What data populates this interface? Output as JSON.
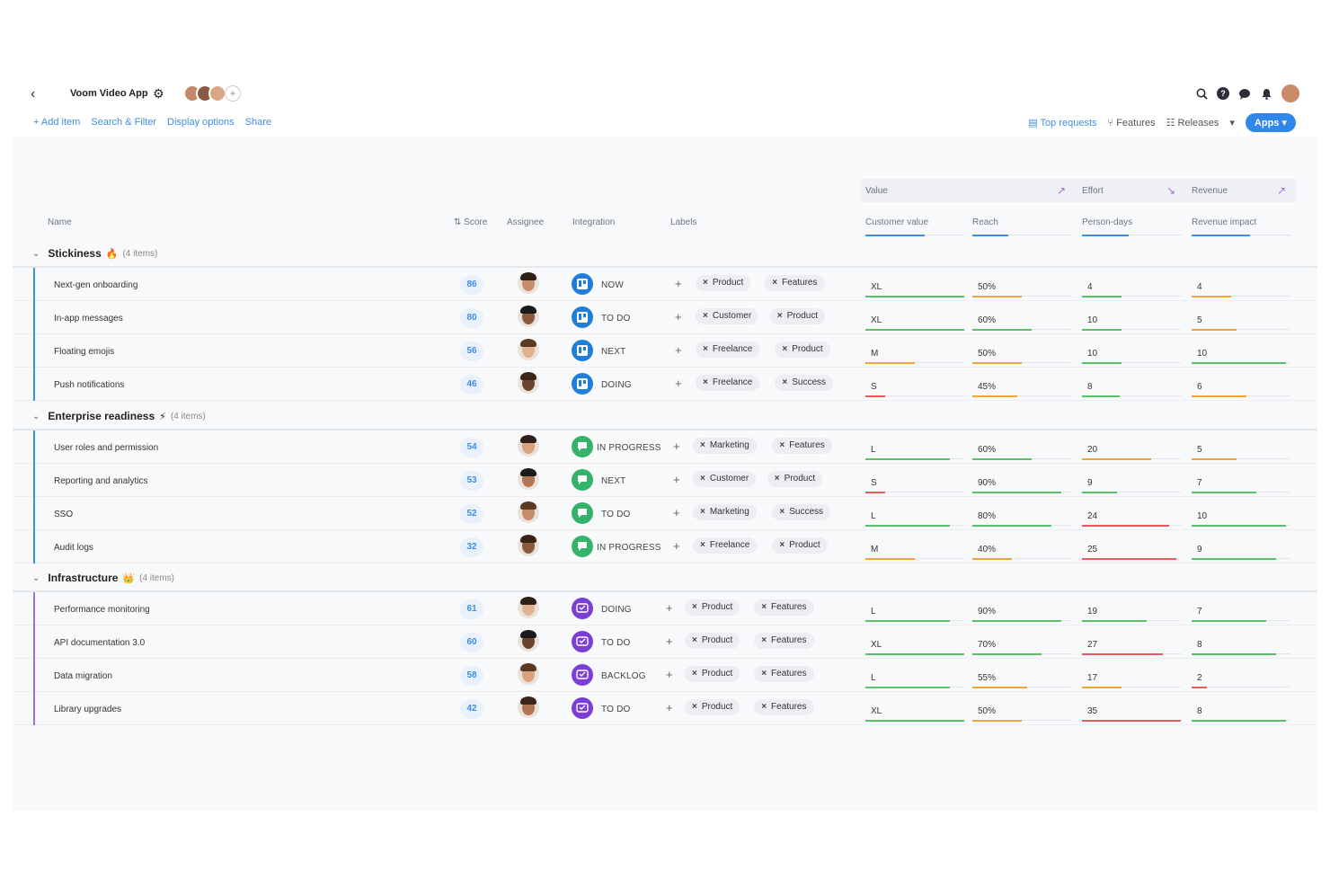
{
  "header": {
    "back_icon": "chevron-left-icon",
    "app_title": "Voom Video App",
    "settings_icon": "gear-icon",
    "avatars": [
      "#c08a6b",
      "#8a5a44",
      "#d9a784"
    ],
    "add_member": "+",
    "right_icons": [
      "search-icon",
      "help-icon",
      "chat-icon",
      "bell-icon"
    ]
  },
  "actions": {
    "add_item": "+ Add item",
    "search_filter": "Search & Filter",
    "display_options": "Display options",
    "share": "Share"
  },
  "views": {
    "top_requests": "Top requests",
    "features": "Features",
    "releases": "Releases",
    "more": "▾",
    "apps": "Apps ▾"
  },
  "columns": {
    "name": "Name",
    "score": "Score",
    "assignee": "Assignee",
    "integration": "Integration",
    "labels": "Labels",
    "value_group": "Value",
    "effort_group": "Effort",
    "revenue_group": "Revenue",
    "customer_value": "Customer value",
    "reach": "Reach",
    "person_days": "Person-days",
    "revenue_impact": "Revenue impact"
  },
  "colors": {
    "green": "#5bbf6a",
    "orange": "#f0a53a",
    "red": "#e75b5b",
    "trello": "#1f7fd6",
    "chat": "#35b36b",
    "purple": "#7b3fd6"
  },
  "groups": [
    {
      "title": "Stickiness",
      "emoji": "🔥",
      "count": "(4 items)",
      "bar_color": "#3d8ee6",
      "integration": "trello",
      "rows": [
        {
          "name": "Next-gen onboarding",
          "score": "86",
          "status": "NOW",
          "labels": [
            "Product",
            "Features"
          ],
          "cv": "XL",
          "cv_level": 1.0,
          "cv_color": "green",
          "reach": "50%",
          "reach_level": 0.5,
          "reach_color": "orange",
          "pd": "4",
          "pd_level": 0.4,
          "pd_color": "green",
          "ri": "4",
          "ri_level": 0.4,
          "ri_color": "orange"
        },
        {
          "name": "In-app messages",
          "score": "80",
          "status": "TO DO",
          "labels": [
            "Customer",
            "Product"
          ],
          "cv": "XL",
          "cv_level": 1.0,
          "cv_color": "green",
          "reach": "60%",
          "reach_level": 0.6,
          "reach_color": "green",
          "pd": "10",
          "pd_level": 0.4,
          "pd_color": "green",
          "ri": "5",
          "ri_level": 0.45,
          "ri_color": "orange"
        },
        {
          "name": "Floating emojis",
          "score": "56",
          "status": "NEXT",
          "labels": [
            "Freelance",
            "Product"
          ],
          "cv": "M",
          "cv_level": 0.5,
          "cv_color": "orange",
          "reach": "50%",
          "reach_level": 0.5,
          "reach_color": "orange",
          "pd": "10",
          "pd_level": 0.4,
          "pd_color": "green",
          "ri": "10",
          "ri_level": 0.95,
          "ri_color": "green"
        },
        {
          "name": "Push notifications",
          "score": "46",
          "status": "DOING",
          "labels": [
            "Freelance",
            "Success"
          ],
          "cv": "S",
          "cv_level": 0.2,
          "cv_color": "red",
          "reach": "45%",
          "reach_level": 0.45,
          "reach_color": "orange",
          "pd": "8",
          "pd_level": 0.38,
          "pd_color": "green",
          "ri": "6",
          "ri_level": 0.55,
          "ri_color": "orange"
        }
      ]
    },
    {
      "title": "Enterprise readiness",
      "emoji": "⚡",
      "count": "(4 items)",
      "bar_color": "#3d8ee6",
      "integration": "chat",
      "rows": [
        {
          "name": "User roles and permission",
          "score": "54",
          "status": "IN PROGRESS",
          "labels": [
            "Marketing",
            "Features"
          ],
          "cv": "L",
          "cv_level": 0.85,
          "cv_color": "green",
          "reach": "60%",
          "reach_level": 0.6,
          "reach_color": "green",
          "pd": "20",
          "pd_level": 0.7,
          "pd_color": "orange",
          "ri": "5",
          "ri_level": 0.45,
          "ri_color": "orange"
        },
        {
          "name": "Reporting and analytics",
          "score": "53",
          "status": "NEXT",
          "labels": [
            "Customer",
            "Product"
          ],
          "cv": "S",
          "cv_level": 0.2,
          "cv_color": "red",
          "reach": "90%",
          "reach_level": 0.9,
          "reach_color": "green",
          "pd": "9",
          "pd_level": 0.35,
          "pd_color": "green",
          "ri": "7",
          "ri_level": 0.65,
          "ri_color": "green"
        },
        {
          "name": "SSO",
          "score": "52",
          "status": "TO DO",
          "labels": [
            "Marketing",
            "Success"
          ],
          "cv": "L",
          "cv_level": 0.85,
          "cv_color": "green",
          "reach": "80%",
          "reach_level": 0.8,
          "reach_color": "green",
          "pd": "24",
          "pd_level": 0.88,
          "pd_color": "red",
          "ri": "10",
          "ri_level": 0.95,
          "ri_color": "green"
        },
        {
          "name": "Audit logs",
          "score": "32",
          "status": "IN PROGRESS",
          "labels": [
            "Freelance",
            "Product"
          ],
          "cv": "M",
          "cv_level": 0.5,
          "cv_color": "orange",
          "reach": "40%",
          "reach_level": 0.4,
          "reach_color": "orange",
          "pd": "25",
          "pd_level": 0.95,
          "pd_color": "red",
          "ri": "9",
          "ri_level": 0.85,
          "ri_color": "green"
        }
      ]
    },
    {
      "title": "Infrastructure",
      "emoji": "👑",
      "count": "(4 items)",
      "bar_color": "#a26ee8",
      "integration": "purple",
      "rows": [
        {
          "name": "Performance monitoring",
          "score": "61",
          "status": "DOING",
          "labels": [
            "Product",
            "Features"
          ],
          "cv": "L",
          "cv_level": 0.85,
          "cv_color": "green",
          "reach": "90%",
          "reach_level": 0.9,
          "reach_color": "green",
          "pd": "19",
          "pd_level": 0.65,
          "pd_color": "green",
          "ri": "7",
          "ri_level": 0.75,
          "ri_color": "green"
        },
        {
          "name": "API documentation 3.0",
          "score": "60",
          "status": "TO DO",
          "labels": [
            "Product",
            "Features"
          ],
          "cv": "XL",
          "cv_level": 1.0,
          "cv_color": "green",
          "reach": "70%",
          "reach_level": 0.7,
          "reach_color": "green",
          "pd": "27",
          "pd_level": 0.82,
          "pd_color": "red",
          "ri": "8",
          "ri_level": 0.85,
          "ri_color": "green"
        },
        {
          "name": "Data migration",
          "score": "58",
          "status": "BACKLOG",
          "labels": [
            "Product",
            "Features"
          ],
          "cv": "L",
          "cv_level": 0.85,
          "cv_color": "green",
          "reach": "55%",
          "reach_level": 0.55,
          "reach_color": "orange",
          "pd": "17",
          "pd_level": 0.4,
          "pd_color": "orange",
          "ri": "2",
          "ri_level": 0.15,
          "ri_color": "red"
        },
        {
          "name": "Library upgrades",
          "score": "42",
          "status": "TO DO",
          "labels": [
            "Product",
            "Features"
          ],
          "cv": "XL",
          "cv_level": 1.0,
          "cv_color": "green",
          "reach": "50%",
          "reach_level": 0.5,
          "reach_color": "orange",
          "pd": "35",
          "pd_level": 1.0,
          "pd_color": "red",
          "ri": "8",
          "ri_level": 0.95,
          "ri_color": "green"
        }
      ]
    }
  ]
}
